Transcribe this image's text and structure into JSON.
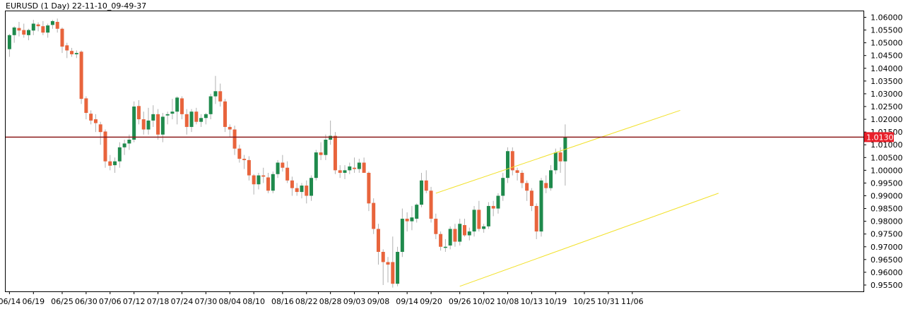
{
  "header": {
    "title": "EURUSD (1 Day) 22-11-10_09-49-37"
  },
  "colors": {
    "background": "#ffffff",
    "axis": "#000000",
    "bull": "#1f8a4c",
    "bear": "#e8643c",
    "wick": "#b0b0b0",
    "channel": "#f2e12a",
    "level_line": "#8b1a1a",
    "price_label_bg": "#e8202a",
    "price_label_text": "#ffffff"
  },
  "chart_data": {
    "type": "candlestick",
    "title": "EURUSD (1 Day) 22-11-10_09-49-37",
    "ylim": [
      0.954,
      1.0625
    ],
    "yticks": [
      "1.06000",
      "1.05500",
      "1.05000",
      "1.04500",
      "1.04000",
      "1.03500",
      "1.03000",
      "1.02500",
      "1.02000",
      "1.01500",
      "1.01000",
      "1.00500",
      "1.00000",
      "0.99500",
      "0.99000",
      "0.98500",
      "0.98000",
      "0.97500",
      "0.97000",
      "0.96500",
      "0.96000",
      "0.95500"
    ],
    "xticks": [
      {
        "label": "06/14",
        "index": 0
      },
      {
        "label": "06/19",
        "index": 5
      },
      {
        "label": "06/25",
        "index": 11
      },
      {
        "label": "06/30",
        "index": 16
      },
      {
        "label": "07/06",
        "index": 21
      },
      {
        "label": "07/12",
        "index": 26
      },
      {
        "label": "07/18",
        "index": 31
      },
      {
        "label": "07/24",
        "index": 36
      },
      {
        "label": "07/30",
        "index": 41
      },
      {
        "label": "08/04",
        "index": 46
      },
      {
        "label": "08/10",
        "index": 51
      },
      {
        "label": "08/16",
        "index": 57
      },
      {
        "label": "08/22",
        "index": 62
      },
      {
        "label": "08/28",
        "index": 67
      },
      {
        "label": "09/03",
        "index": 72
      },
      {
        "label": "09/08",
        "index": 77
      },
      {
        "label": "09/14",
        "index": 83
      },
      {
        "label": "09/20",
        "index": 88
      },
      {
        "label": "09/26",
        "index": 94
      },
      {
        "label": "10/02",
        "index": 99
      },
      {
        "label": "10/08",
        "index": 104
      },
      {
        "label": "10/13",
        "index": 109
      },
      {
        "label": "10/19",
        "index": 114
      },
      {
        "label": "10/25",
        "index": 120
      },
      {
        "label": "10/31",
        "index": 125
      },
      {
        "label": "11/06",
        "index": 130
      }
    ],
    "candles": [
      [
        1.0475,
        1.0535,
        1.0445,
        1.053
      ],
      [
        1.053,
        1.0565,
        1.05,
        1.056
      ],
      [
        1.0558,
        1.0582,
        1.0525,
        1.0548
      ],
      [
        1.055,
        1.0575,
        1.052,
        1.0532
      ],
      [
        1.053,
        1.0555,
        1.051,
        1.055
      ],
      [
        1.0548,
        1.059,
        1.053,
        1.0575
      ],
      [
        1.0572,
        1.058,
        1.0545,
        1.0565
      ],
      [
        1.0565,
        1.0585,
        1.053,
        1.054
      ],
      [
        1.054,
        1.0575,
        1.052,
        1.0568
      ],
      [
        1.057,
        1.059,
        1.0555,
        1.0585
      ],
      [
        1.0582,
        1.0595,
        1.054,
        1.0555
      ],
      [
        1.0555,
        1.056,
        1.046,
        1.0485
      ],
      [
        1.049,
        1.05,
        1.044,
        1.047
      ],
      [
        1.0468,
        1.048,
        1.0445,
        1.0455
      ],
      [
        1.0455,
        1.047,
        1.044,
        1.046
      ],
      [
        1.0465,
        1.047,
        1.026,
        1.028
      ],
      [
        1.0282,
        1.029,
        1.02,
        1.0225
      ],
      [
        1.0222,
        1.0235,
        1.018,
        1.0195
      ],
      [
        1.02,
        1.022,
        1.015,
        1.0185
      ],
      [
        1.018,
        1.019,
        1.01,
        1.015
      ],
      [
        1.0152,
        1.016,
        1.001,
        1.0035
      ],
      [
        1.0035,
        1.006,
        1.0,
        1.0018
      ],
      [
        1.002,
        1.005,
        0.999,
        1.0035
      ],
      [
        1.0035,
        1.011,
        1.001,
        1.009
      ],
      [
        1.009,
        1.012,
        1.006,
        1.0105
      ],
      [
        1.0105,
        1.014,
        1.008,
        1.012
      ],
      [
        1.012,
        1.027,
        1.011,
        1.025
      ],
      [
        1.0252,
        1.0275,
        1.018,
        1.02
      ],
      [
        1.02,
        1.023,
        1.014,
        1.016
      ],
      [
        1.016,
        1.0245,
        1.014,
        1.0195
      ],
      [
        1.0195,
        1.0255,
        1.017,
        1.022
      ],
      [
        1.022,
        1.024,
        1.012,
        1.014
      ],
      [
        1.014,
        1.0225,
        1.011,
        1.021
      ],
      [
        1.0215,
        1.023,
        1.018,
        1.022
      ],
      [
        1.0222,
        1.028,
        1.02,
        1.023
      ],
      [
        1.023,
        1.029,
        1.018,
        1.0285
      ],
      [
        1.0282,
        1.029,
        1.02,
        1.022
      ],
      [
        1.022,
        1.024,
        1.014,
        1.017
      ],
      [
        1.017,
        1.024,
        1.015,
        1.023
      ],
      [
        1.023,
        1.0245,
        1.018,
        1.019
      ],
      [
        1.019,
        1.022,
        1.017,
        1.0205
      ],
      [
        1.0205,
        1.0225,
        1.018,
        1.022
      ],
      [
        1.022,
        1.03,
        1.02,
        1.029
      ],
      [
        1.029,
        1.037,
        1.026,
        1.031
      ],
      [
        1.031,
        1.034,
        1.025,
        1.027
      ],
      [
        1.027,
        1.028,
        1.015,
        1.017
      ],
      [
        1.017,
        1.018,
        1.013,
        1.016
      ],
      [
        1.016,
        1.0175,
        1.006,
        1.0085
      ],
      [
        1.0085,
        1.01,
        1.003,
        1.0045
      ],
      [
        1.0045,
        1.006,
        1.0005,
        1.004
      ],
      [
        1.004,
        1.0055,
        0.996,
        0.998
      ],
      [
        0.998,
        0.9985,
        0.9905,
        0.9945
      ],
      [
        0.9945,
        0.999,
        0.9925,
        0.998
      ],
      [
        0.998,
        1.001,
        0.995,
        0.9975
      ],
      [
        0.9972,
        0.999,
        0.991,
        0.992
      ],
      [
        0.992,
        0.9995,
        0.991,
        0.9985
      ],
      [
        0.9985,
        1.004,
        0.997,
        1.003
      ],
      [
        1.003,
        1.006,
        0.9995,
        1.001
      ],
      [
        1.001,
        1.0035,
        0.995,
        0.996
      ],
      [
        0.996,
        0.9975,
        0.99,
        0.993
      ],
      [
        0.993,
        0.995,
        0.99,
        0.9915
      ],
      [
        0.9915,
        0.995,
        0.989,
        0.994
      ],
      [
        0.994,
        0.996,
        0.987,
        0.99
      ],
      [
        0.99,
        0.998,
        0.988,
        0.997
      ],
      [
        0.997,
        1.008,
        0.996,
        1.007
      ],
      [
        1.007,
        1.011,
        1.004,
        1.006
      ],
      [
        1.006,
        1.014,
        1.004,
        1.012
      ],
      [
        1.012,
        1.0195,
        1.01,
        1.0135
      ],
      [
        1.0135,
        1.015,
        0.9985,
        1.0
      ],
      [
        1.0,
        1.002,
        0.997,
        0.999
      ],
      [
        0.999,
        1.002,
        0.9965,
        1.0
      ],
      [
        1.0,
        1.003,
        0.9985,
        1.0015
      ],
      [
        1.001,
        1.005,
        0.999,
        1.0005
      ],
      [
        1.0005,
        1.0045,
        0.999,
        1.003
      ],
      [
        1.003,
        1.005,
        0.999,
        0.999
      ],
      [
        0.999,
        0.9995,
        0.984,
        0.987
      ],
      [
        0.9872,
        0.989,
        0.975,
        0.977
      ],
      [
        0.977,
        0.979,
        0.963,
        0.968
      ],
      [
        0.968,
        0.969,
        0.955,
        0.964
      ],
      [
        0.964,
        0.966,
        0.956,
        0.963
      ],
      [
        0.964,
        0.974,
        0.954,
        0.9555
      ],
      [
        0.9555,
        0.97,
        0.9545,
        0.968
      ],
      [
        0.968,
        0.985,
        0.966,
        0.981
      ],
      [
        0.981,
        0.9835,
        0.976,
        0.98
      ],
      [
        0.98,
        0.986,
        0.9765,
        0.9815
      ],
      [
        0.981,
        0.987,
        0.9795,
        0.9865
      ],
      [
        0.9865,
        0.999,
        0.9855,
        0.996
      ],
      [
        0.996,
        1.0,
        0.991,
        0.992
      ],
      [
        0.992,
        0.9935,
        0.9795,
        0.981
      ],
      [
        0.981,
        0.983,
        0.973,
        0.975
      ],
      [
        0.975,
        0.976,
        0.9685,
        0.97
      ],
      [
        0.97,
        0.973,
        0.968,
        0.97
      ],
      [
        0.9705,
        0.978,
        0.969,
        0.977
      ],
      [
        0.977,
        0.979,
        0.97,
        0.972
      ],
      [
        0.972,
        0.981,
        0.9705,
        0.979
      ],
      [
        0.9785,
        0.981,
        0.974,
        0.9745
      ],
      [
        0.9745,
        0.9775,
        0.9725,
        0.976
      ],
      [
        0.976,
        0.986,
        0.974,
        0.9845
      ],
      [
        0.9845,
        0.988,
        0.976,
        0.977
      ],
      [
        0.977,
        0.979,
        0.9755,
        0.978
      ],
      [
        0.978,
        0.9875,
        0.977,
        0.986
      ],
      [
        0.986,
        0.988,
        0.982,
        0.985
      ],
      [
        0.985,
        0.991,
        0.983,
        0.99
      ],
      [
        0.99,
        0.999,
        0.988,
        0.997
      ],
      [
        0.997,
        1.009,
        0.995,
        1.0075
      ],
      [
        1.0075,
        1.009,
        0.998,
        1.0
      ],
      [
        1.0,
        1.001,
        0.996,
        0.999
      ],
      [
        0.999,
        1.0,
        0.993,
        0.995
      ],
      [
        0.995,
        0.996,
        0.988,
        0.992
      ],
      [
        0.992,
        0.993,
        0.984,
        0.986
      ],
      [
        0.986,
        0.987,
        0.973,
        0.976
      ],
      [
        0.976,
        0.997,
        0.974,
        0.996
      ],
      [
        0.995,
        0.998,
        0.991,
        0.993
      ],
      [
        0.993,
        1.002,
        0.992,
        1.0
      ],
      [
        1.0,
        1.0085,
        0.9985,
        1.007
      ],
      [
        1.007,
        1.009,
        0.999,
        1.0035
      ],
      [
        1.0035,
        1.018,
        0.994,
        1.013
      ]
    ],
    "channel_lines": [
      {
        "name": "upper",
        "x0": 89,
        "y0": 0.991,
        "x1": 140,
        "y1": 1.0235
      },
      {
        "name": "lower",
        "x0": 94,
        "y0": 0.9545,
        "x1": 148,
        "y1": 0.991
      }
    ],
    "level_line": 1.013,
    "current_price_label": "1.01303",
    "grid": false
  }
}
